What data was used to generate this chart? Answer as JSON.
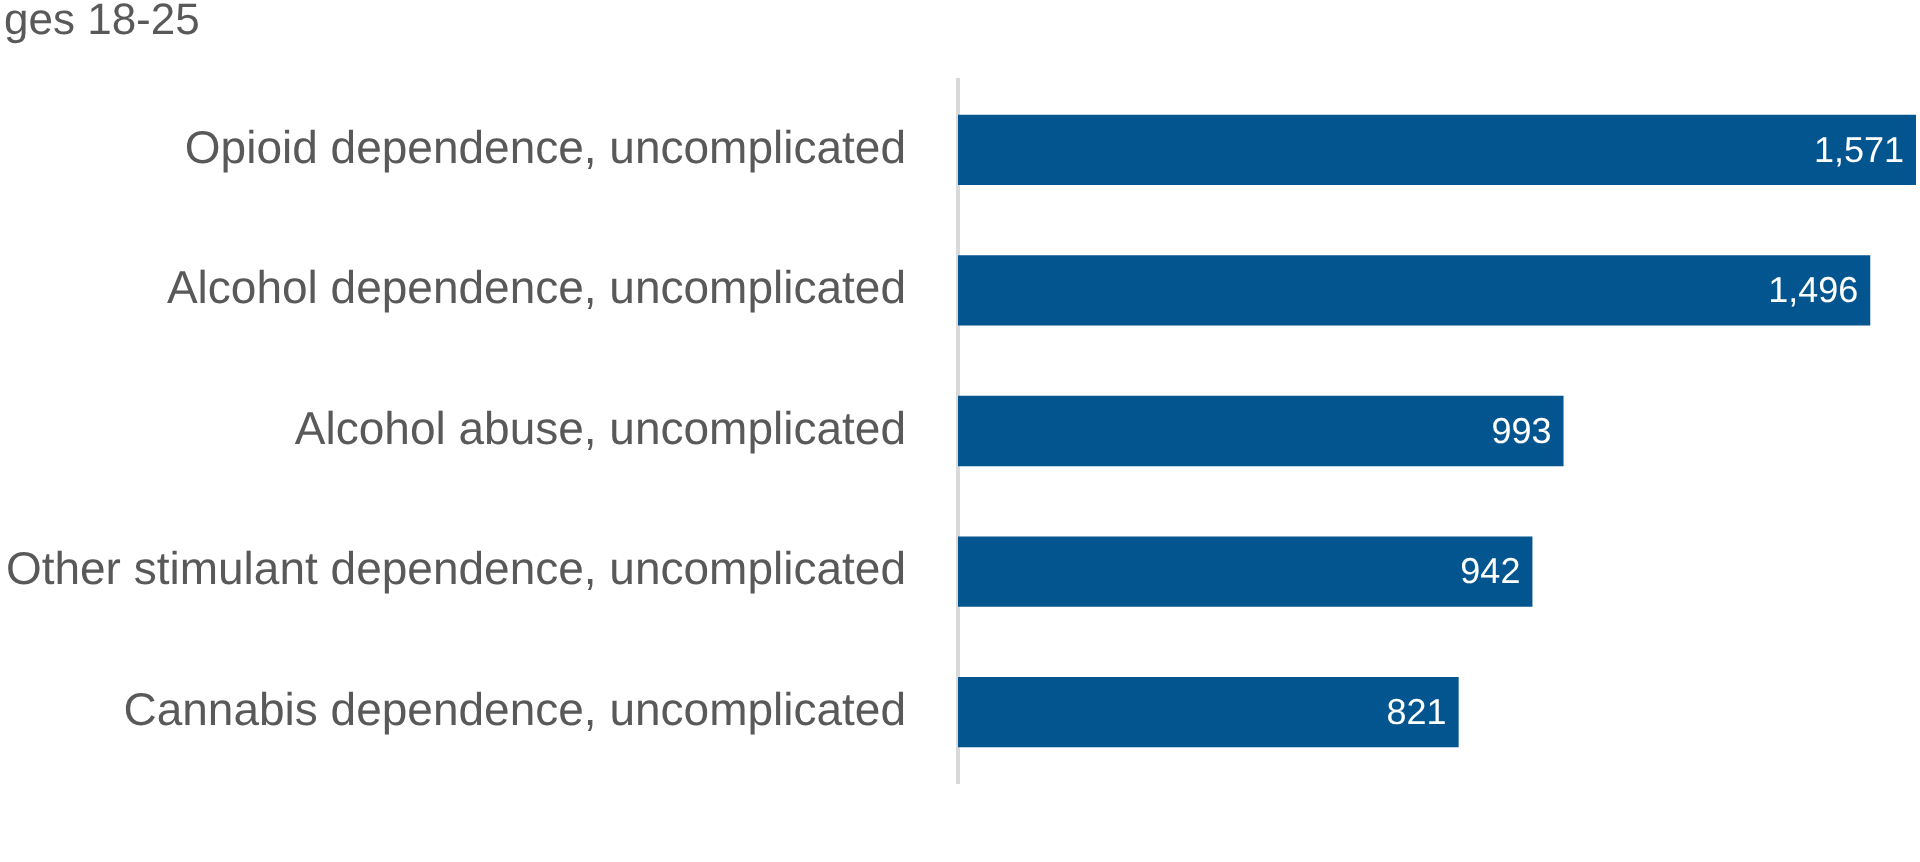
{
  "chart_data": {
    "type": "bar",
    "orientation": "horizontal",
    "title": "ges 18-25",
    "categories": [
      "Opioid dependence, uncomplicated",
      "Alcohol dependence, uncomplicated",
      "Alcohol abuse, uncomplicated",
      "Other stimulant dependence, uncomplicated",
      "Cannabis dependence, uncomplicated"
    ],
    "values": [
      1571,
      1496,
      993,
      942,
      821
    ],
    "value_labels": [
      "1,571",
      "1,496",
      "993",
      "942",
      "821"
    ],
    "color": "#03558f",
    "legend": false
  }
}
